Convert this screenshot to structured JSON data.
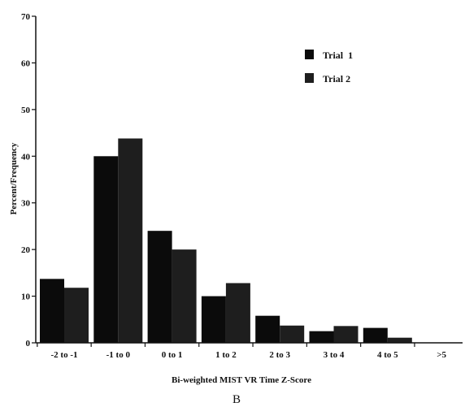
{
  "panel_label": "B",
  "colors": {
    "trial1": "#0b0b0b",
    "trial2": "#1e1e1e",
    "axis": "#111111"
  },
  "chart_data": {
    "type": "bar",
    "categories": [
      "-2 to -1",
      "-1 to 0",
      "0 to 1",
      "1 to 2",
      "2 to 3",
      "3 to 4",
      "4 to 5",
      ">5"
    ],
    "series": [
      {
        "name": "Trial  1",
        "values": [
          13.7,
          40,
          24,
          10,
          5.8,
          2.5,
          3.2,
          0
        ]
      },
      {
        "name": "Trial 2",
        "values": [
          11.8,
          43.8,
          20,
          12.8,
          3.7,
          3.6,
          1.1,
          0
        ]
      }
    ],
    "title": "",
    "xlabel": "Bi-weighted MIST VR Time Z-Score",
    "ylabel": "Percent/Frequency",
    "ylim": [
      0,
      70
    ],
    "yticks": [
      0,
      10,
      20,
      30,
      40,
      50,
      60,
      70
    ],
    "grid": false,
    "legend_position": "top-right"
  }
}
